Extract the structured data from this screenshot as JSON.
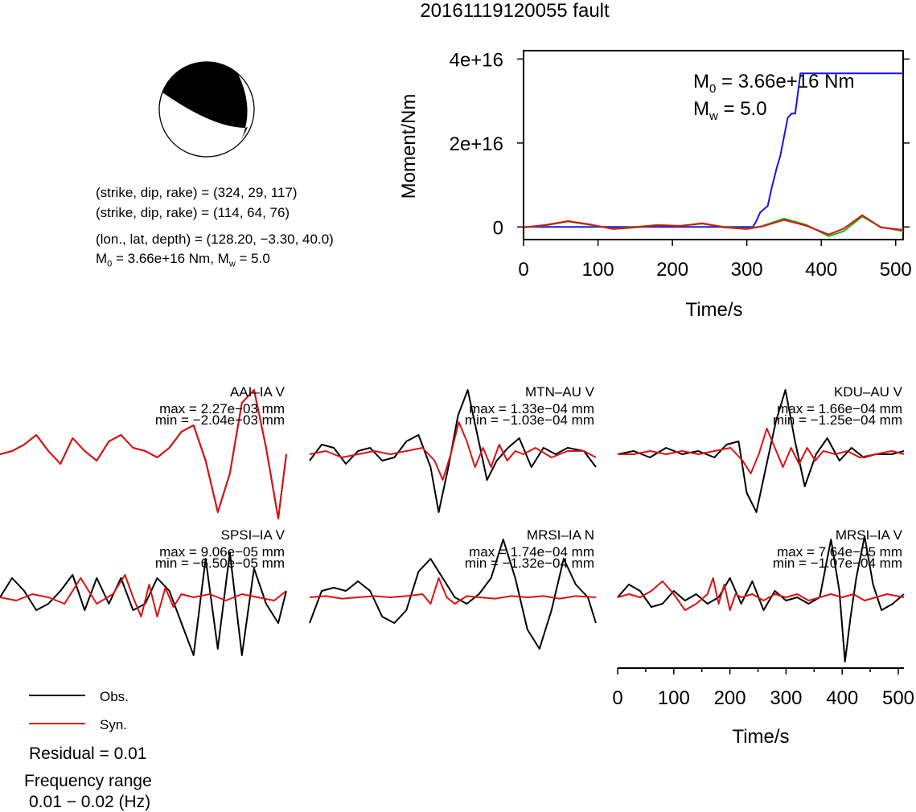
{
  "title": "20161119120055 fault",
  "focal": {
    "plane1": "(strike, dip, rake) = (324, 29, 117)",
    "plane2": "(strike, dip, rake) = (114, 64, 76)",
    "location": "(lon., lat, depth) = (128.20, −3.30, 40.0)",
    "m0_prefix": "M",
    "m0_sub": "0",
    "m0_rest": " = 3.66e+16 Nm, M",
    "mw_sub": "w",
    "mw_rest": " = 5.0"
  },
  "chart_data": [
    {
      "type": "line",
      "panel": "moment-rate",
      "title": "",
      "xlabel": "Time/s",
      "ylabel": "Moment/Nm",
      "xlim": [
        0,
        510
      ],
      "ylim": [
        -3000000000000000.0,
        4.2e+16
      ],
      "x_ticks": [
        0,
        100,
        200,
        300,
        400,
        500
      ],
      "x_tick_labels": [
        "0",
        "100",
        "200",
        "300",
        "400",
        "500"
      ],
      "y_ticks": [
        0,
        2e+16,
        4e+16
      ],
      "y_tick_labels": [
        "0",
        "2e+16",
        "4e+16"
      ],
      "annotation": {
        "m0_prefix": "M",
        "m0_sub": "0",
        "m0_rest": " = 3.66e+16 Nm",
        "mw_prefix": "M",
        "mw_sub": "w",
        "mw_rest": " = 5.0"
      },
      "series": [
        {
          "color": "#1515dd",
          "x": [
            0,
            308,
            312,
            318,
            328,
            333,
            340,
            345,
            350,
            355,
            360,
            365,
            372,
            378,
            510
          ],
          "y": [
            0,
            0,
            1200000000000000.0,
            3500000000000000.0,
            5000000000000000.0,
            9000000000000000.0,
            1.4e+16,
            1.7e+16,
            2.15e+16,
            2.6e+16,
            2.7e+16,
            2.7e+16,
            3.66e+16,
            3.66e+16,
            3.66e+16
          ]
        },
        {
          "color": "#11bb11",
          "x": [
            0,
            30,
            60,
            90,
            120,
            150,
            180,
            210,
            240,
            270,
            300,
            320,
            350,
            380,
            410,
            430,
            455,
            480,
            510
          ],
          "y": [
            -100000000000000.0,
            400000000000000.0,
            1300000000000000.0,
            500000000000000.0,
            -400000000000000.0,
            0,
            500000000000000.0,
            300000000000000.0,
            800000000000000.0,
            0,
            -400000000000000.0,
            200000000000000.0,
            2000000000000000.0,
            500000000000000.0,
            -2200000000000000.0,
            -1000000000000000.0,
            2500000000000000.0,
            0,
            -1000000000000000.0
          ]
        },
        {
          "color": "#dd1111",
          "x": [
            0,
            30,
            60,
            90,
            120,
            150,
            180,
            210,
            240,
            270,
            300,
            320,
            350,
            380,
            410,
            430,
            455,
            480,
            510
          ],
          "y": [
            -100000000000000.0,
            500000000000000.0,
            1400000000000000.0,
            600000000000000.0,
            -500000000000000.0,
            -100000000000000.0,
            400000000000000.0,
            200000000000000.0,
            900000000000000.0,
            -100000000000000.0,
            -500000000000000.0,
            100000000000000.0,
            1700000000000000.0,
            300000000000000.0,
            -1800000000000000.0,
            -400000000000000.0,
            2800000000000000.0,
            -100000000000000.0,
            -700000000000000.0
          ]
        }
      ]
    },
    {
      "type": "line",
      "panel": "waveform",
      "station": "AAI–IA V",
      "max_label": "max = 2.27e−03 mm",
      "min_label": "min = −2.04e−03 mm",
      "series": [
        {
          "name": "Obs.",
          "color": "#000000",
          "x": [
            0,
            15,
            30,
            45,
            60,
            75,
            90,
            105,
            120,
            135,
            150,
            165,
            180,
            195,
            210,
            225,
            240,
            255,
            270,
            285,
            300,
            315,
            330,
            345,
            355
          ],
          "y": [
            0,
            0.05,
            0.15,
            0.3,
            0.05,
            -0.15,
            0.25,
            0.05,
            -0.1,
            0.2,
            0.3,
            0.1,
            0.05,
            -0.05,
            0.1,
            0.35,
            0.45,
            -0.1,
            -0.9,
            -0.3,
            0.8,
            1.0,
            0.1,
            -1.0,
            0
          ]
        },
        {
          "name": "Syn.",
          "color": "#dd1111",
          "x": [
            0,
            15,
            30,
            45,
            60,
            75,
            90,
            105,
            120,
            135,
            150,
            165,
            180,
            195,
            210,
            225,
            240,
            255,
            270,
            285,
            300,
            315,
            330,
            345,
            355
          ],
          "y": [
            0,
            0.05,
            0.15,
            0.3,
            0.05,
            -0.15,
            0.25,
            0.05,
            -0.1,
            0.2,
            0.3,
            0.1,
            0.05,
            -0.05,
            0.1,
            0.35,
            0.45,
            -0.1,
            -0.9,
            -0.3,
            0.8,
            1.0,
            0.1,
            -1.0,
            0
          ]
        }
      ]
    },
    {
      "type": "line",
      "panel": "waveform",
      "station": "MTN–AU V",
      "max_label": "max = 1.33e−04 mm",
      "min_label": "min = −1.03e−04 mm",
      "series": [
        {
          "name": "Obs.",
          "color": "#000000",
          "x": [
            0,
            15,
            30,
            45,
            60,
            75,
            90,
            105,
            120,
            135,
            150,
            160,
            172,
            184,
            196,
            208,
            220,
            232,
            246,
            260,
            275,
            290,
            305,
            320,
            340,
            355
          ],
          "y": [
            -0.1,
            0.15,
            0.1,
            -0.15,
            0.05,
            0.1,
            -0.1,
            -0.05,
            0.2,
            0.3,
            -0.2,
            -0.9,
            -0.2,
            0.6,
            1.0,
            0.3,
            -0.4,
            -0.1,
            0.1,
            0.25,
            -0.2,
            0.1,
            0.0,
            0.1,
            0.05,
            -0.2
          ]
        },
        {
          "name": "Syn.",
          "color": "#dd1111",
          "x": [
            0,
            20,
            40,
            60,
            80,
            100,
            120,
            140,
            155,
            165,
            175,
            185,
            195,
            205,
            215,
            225,
            235,
            245,
            255,
            265,
            280,
            300,
            320,
            340,
            355
          ],
          "y": [
            0,
            0.05,
            -0.05,
            0.0,
            0.05,
            0.0,
            0.05,
            0.1,
            -0.1,
            -0.4,
            0.0,
            0.5,
            0.2,
            -0.2,
            0.1,
            -0.2,
            0.15,
            -0.1,
            0.05,
            0.0,
            0.1,
            -0.05,
            0.05,
            0.05,
            -0.05
          ]
        }
      ]
    },
    {
      "type": "line",
      "panel": "waveform",
      "station": "KDU–AU V",
      "max_label": "max = 1.66e−04 mm",
      "min_label": "min = −1.25e−04 mm",
      "series": [
        {
          "name": "Obs.",
          "color": "#000000",
          "x": [
            0,
            20,
            40,
            60,
            80,
            100,
            120,
            135,
            150,
            160,
            172,
            184,
            196,
            208,
            220,
            232,
            246,
            260,
            275,
            290,
            305,
            320,
            340,
            355
          ],
          "y": [
            0,
            0.05,
            -0.05,
            0.1,
            0.0,
            0.05,
            -0.05,
            0.15,
            0.2,
            -0.6,
            -0.9,
            -0.2,
            0.5,
            1.0,
            0.2,
            -0.5,
            0.0,
            0.25,
            -0.1,
            0.1,
            -0.05,
            0.0,
            0.0,
            0.05
          ]
        },
        {
          "name": "Syn.",
          "color": "#dd1111",
          "x": [
            0,
            20,
            40,
            60,
            80,
            100,
            120,
            140,
            155,
            165,
            175,
            185,
            195,
            205,
            215,
            225,
            235,
            245,
            255,
            270,
            285,
            300,
            320,
            340,
            355
          ],
          "y": [
            0,
            0.0,
            0.05,
            0.0,
            0.05,
            0.0,
            0.05,
            0.1,
            -0.1,
            -0.3,
            0.0,
            0.4,
            0.1,
            -0.2,
            0.1,
            -0.15,
            0.1,
            -0.1,
            0.05,
            0.0,
            0.05,
            -0.05,
            0.0,
            0.05,
            0.0
          ]
        }
      ]
    },
    {
      "type": "line",
      "panel": "waveform",
      "station": "SPSI–IA V",
      "max_label": "max = 9.06e−05 mm",
      "min_label": "min = −6.50e−05 mm",
      "series": [
        {
          "name": "Obs.",
          "color": "#000000",
          "x": [
            0,
            15,
            30,
            45,
            60,
            75,
            90,
            105,
            120,
            135,
            150,
            165,
            180,
            195,
            210,
            225,
            240,
            255,
            270,
            285,
            300,
            315,
            330,
            345,
            355
          ],
          "y": [
            0.0,
            0.3,
            0.1,
            -0.2,
            -0.1,
            0.1,
            0.35,
            -0.2,
            0.3,
            -0.1,
            0.3,
            -0.2,
            -0.1,
            0.3,
            0.1,
            -0.4,
            -0.9,
            0.6,
            -0.8,
            0.7,
            -0.9,
            0.45,
            -0.1,
            -0.4,
            0.1
          ]
        },
        {
          "name": "Syn.",
          "color": "#dd1111",
          "x": [
            0,
            20,
            40,
            60,
            80,
            100,
            120,
            140,
            155,
            165,
            175,
            185,
            195,
            205,
            215,
            225,
            240,
            260,
            280,
            300,
            320,
            340,
            355
          ],
          "y": [
            0,
            -0.05,
            0.05,
            0.0,
            -0.1,
            0.3,
            -0.1,
            0.05,
            0.35,
            0.0,
            -0.3,
            0.2,
            -0.3,
            0.15,
            -0.15,
            0.05,
            0.0,
            0.05,
            -0.05,
            0.05,
            0.0,
            -0.05,
            0.1
          ]
        }
      ]
    },
    {
      "type": "line",
      "panel": "waveform",
      "station": "MRSI–IA N",
      "max_label": "max = 1.74e−04 mm",
      "min_label": "min = −1.32e−04 mm",
      "series": [
        {
          "name": "Obs.",
          "color": "#000000",
          "x": [
            0,
            15,
            30,
            45,
            60,
            75,
            90,
            105,
            120,
            135,
            150,
            165,
            180,
            195,
            210,
            225,
            240,
            255,
            270,
            285,
            300,
            315,
            330,
            345,
            355
          ],
          "y": [
            -0.4,
            0.1,
            0.15,
            0.1,
            0.25,
            0.1,
            -0.3,
            -0.4,
            -0.2,
            0.4,
            0.6,
            0.3,
            0.0,
            -0.1,
            0.05,
            0.3,
            0.9,
            0.3,
            -0.5,
            -0.8,
            -0.2,
            0.6,
            0.2,
            0.0,
            -0.4
          ]
        },
        {
          "name": "Syn.",
          "color": "#dd1111",
          "x": [
            0,
            20,
            40,
            60,
            80,
            100,
            120,
            140,
            150,
            160,
            170,
            180,
            195,
            210,
            230,
            250,
            270,
            290,
            310,
            330,
            355
          ],
          "y": [
            0,
            0.02,
            -0.02,
            0.0,
            0.02,
            0.0,
            0.02,
            0.05,
            -0.1,
            0.3,
            0.0,
            -0.1,
            0.02,
            0.0,
            -0.02,
            0.02,
            0.0,
            0.02,
            -0.02,
            0.02,
            0.0
          ]
        }
      ]
    },
    {
      "type": "line",
      "panel": "waveform-with-axis",
      "station": "MRSI–IA V",
      "max_label": "max = 7.64e−05 mm",
      "min_label": "min = −1.07e−04 mm",
      "xlabel": "Time/s",
      "xlim": [
        0,
        510
      ],
      "x_ticks": [
        0,
        100,
        200,
        300,
        400,
        500
      ],
      "x_tick_labels": [
        "0",
        "100",
        "200",
        "300",
        "400",
        "500"
      ],
      "series": [
        {
          "name": "Obs.",
          "color": "#000000",
          "x": [
            0,
            20,
            40,
            60,
            80,
            100,
            120,
            140,
            160,
            180,
            200,
            220,
            240,
            260,
            280,
            300,
            320,
            340,
            360,
            380,
            395,
            405,
            415,
            425,
            440,
            455,
            470,
            490,
            510
          ],
          "y": [
            0.0,
            0.2,
            0.1,
            -0.15,
            -0.1,
            0.1,
            -0.05,
            0.05,
            -0.1,
            0.0,
            0.3,
            -0.1,
            0.25,
            -0.2,
            0.1,
            -0.05,
            0.0,
            -0.1,
            0.0,
            0.9,
            0.1,
            -1.0,
            -0.3,
            0.3,
            0.95,
            0.2,
            -0.2,
            -0.1,
            0.05
          ]
        },
        {
          "name": "Syn.",
          "color": "#dd1111",
          "x": [
            0,
            20,
            40,
            60,
            80,
            100,
            120,
            140,
            160,
            170,
            180,
            190,
            200,
            210,
            220,
            240,
            260,
            280,
            300,
            320,
            340,
            360,
            380,
            400,
            420,
            440,
            460,
            480,
            510
          ],
          "y": [
            0,
            0.05,
            0.0,
            0.1,
            0.25,
            0.05,
            -0.2,
            -0.1,
            0.05,
            0.3,
            -0.1,
            0.2,
            -0.2,
            0.05,
            0.0,
            0.05,
            -0.05,
            0.05,
            0.0,
            0.05,
            -0.05,
            0.0,
            0.05,
            0.0,
            0.05,
            -0.05,
            0.0,
            0.05,
            0.0
          ]
        }
      ]
    }
  ],
  "legend": {
    "obs_label": "Obs.",
    "syn_label": "Syn.",
    "obs_color": "#000000",
    "syn_color": "#dd1111"
  },
  "residual": "Residual = 0.01",
  "freq_title": "Frequency range",
  "freq_value": "0.01 − 0.02 (Hz)"
}
